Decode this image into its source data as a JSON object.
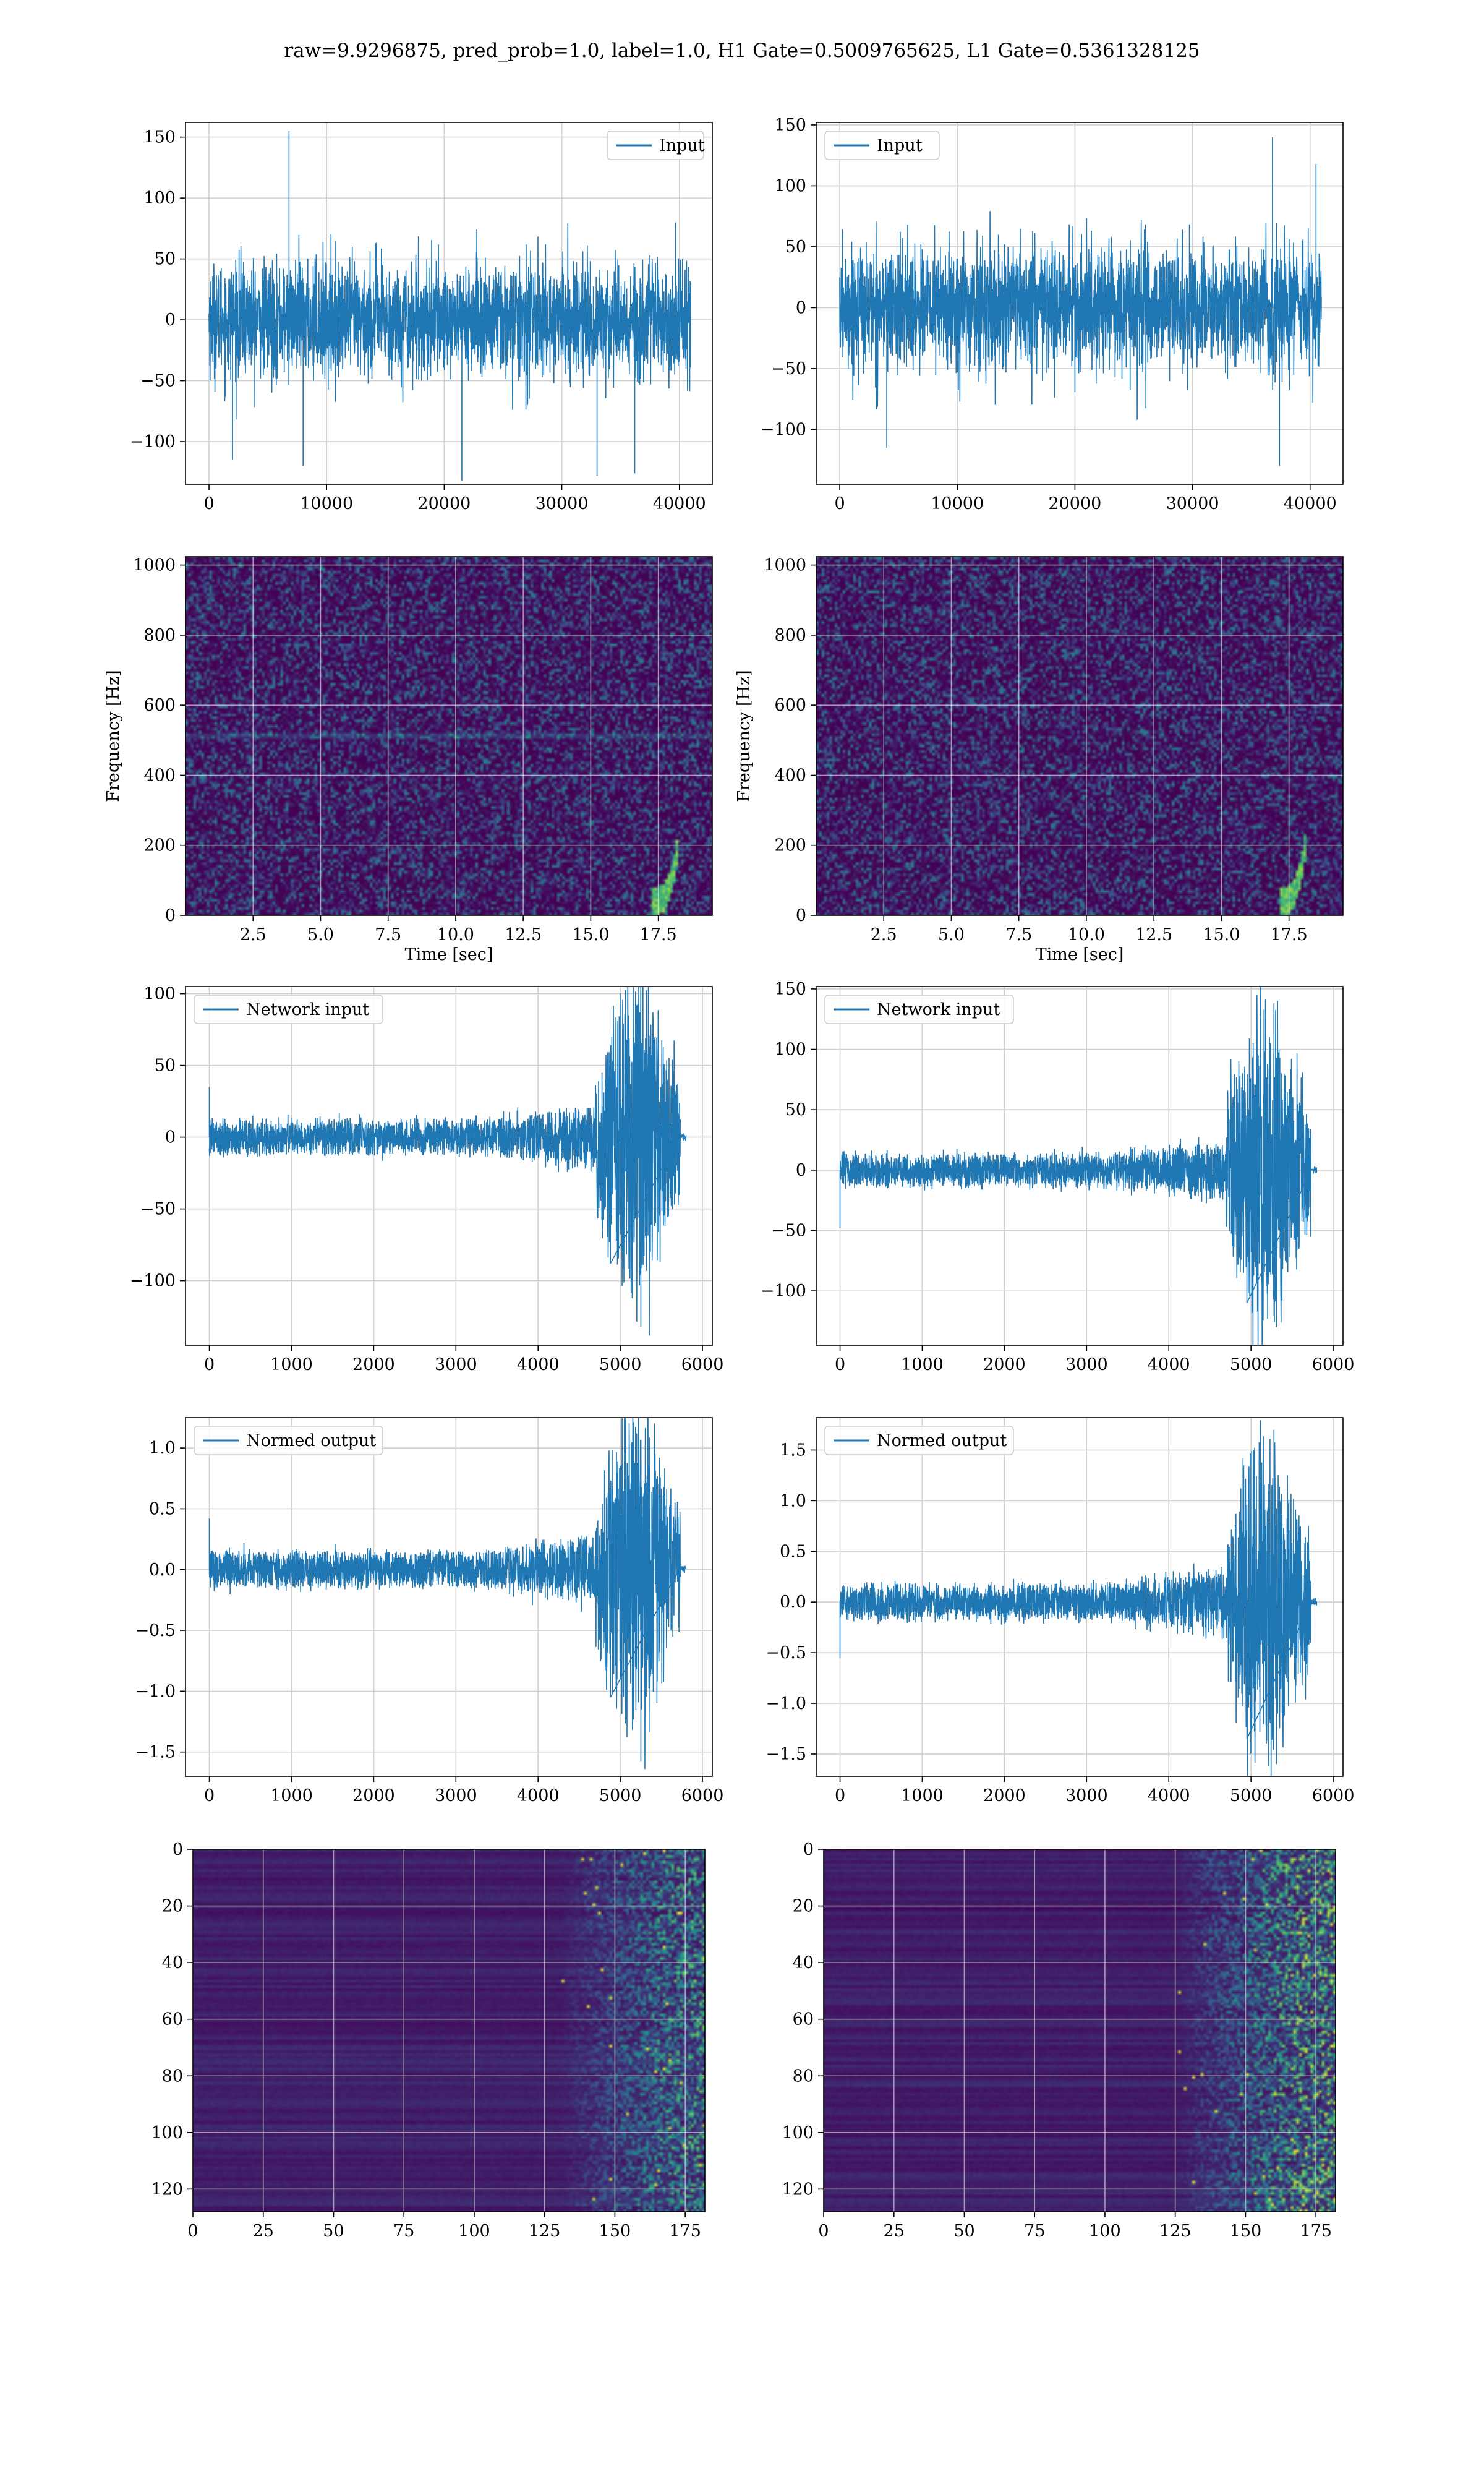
{
  "figure": {
    "title": "raw=9.9296875, pred_prob=1.0, label=1.0, H1 Gate=0.5009765625, L1 Gate=0.5361328125",
    "line_color": "#1f77b4"
  },
  "chart_data": [
    {
      "id": "input-h1",
      "type": "line",
      "legend": "Input",
      "legend_loc": "upper right",
      "xlim": [
        -2000,
        42800
      ],
      "ylim": [
        -135,
        162
      ],
      "grid": true,
      "xticks": [
        0,
        10000,
        20000,
        30000,
        40000
      ],
      "xtick_labels": [
        "0",
        "10000",
        "20000",
        "30000",
        "40000"
      ],
      "yticks": [
        -100,
        -50,
        0,
        50,
        100,
        150
      ],
      "ytick_labels": [
        "−100",
        "−50",
        "0",
        "50",
        "100",
        "150"
      ],
      "series": {
        "x_start": 0,
        "x_end": 40960,
        "std": 26,
        "env_max": 80,
        "env_min": -82,
        "spikes": [
          [
            6800,
            155
          ],
          [
            2000,
            -115
          ],
          [
            21500,
            -132
          ],
          [
            33000,
            -128
          ],
          [
            36200,
            -126
          ],
          [
            8000,
            -120
          ]
        ]
      }
    },
    {
      "id": "input-l1",
      "type": "line",
      "legend": "Input",
      "legend_loc": "upper left",
      "xlim": [
        -2000,
        42800
      ],
      "ylim": [
        -145,
        152
      ],
      "grid": true,
      "xticks": [
        0,
        10000,
        20000,
        30000,
        40000
      ],
      "xtick_labels": [
        "0",
        "10000",
        "20000",
        "30000",
        "40000"
      ],
      "yticks": [
        -100,
        -50,
        0,
        50,
        100,
        150
      ],
      "ytick_labels": [
        "−100",
        "−50",
        "0",
        "50",
        "100",
        "150"
      ],
      "series": {
        "x_start": 0,
        "x_end": 40960,
        "std": 28,
        "env_max": 92,
        "env_min": -92,
        "spikes": [
          [
            36800,
            140
          ],
          [
            37400,
            -130
          ],
          [
            4000,
            -115
          ],
          [
            40500,
            118
          ]
        ]
      }
    },
    {
      "id": "spec-h1",
      "type": "heatmap",
      "grid": true,
      "colormap": "viridis",
      "xlabel": "Time [sec]",
      "ylabel": "Frequency [Hz]",
      "xlim": [
        0,
        19.5
      ],
      "ylim": [
        0,
        1024
      ],
      "xticks": [
        2.5,
        5,
        7.5,
        10,
        12.5,
        15,
        17.5
      ],
      "xtick_labels": [
        "2.5",
        "5.0",
        "7.5",
        "10.0",
        "12.5",
        "15.0",
        "17.5"
      ],
      "yticks": [
        0,
        200,
        400,
        600,
        800,
        1000
      ],
      "ytick_labels": [
        "0",
        "200",
        "400",
        "600",
        "800",
        "1000"
      ],
      "chirp": {
        "t_end": 18.2,
        "f_max": 180
      }
    },
    {
      "id": "spec-l1",
      "type": "heatmap",
      "grid": true,
      "colormap": "viridis",
      "xlabel": "Time [sec]",
      "ylabel": "Frequency [Hz]",
      "xlim": [
        0,
        19.5
      ],
      "ylim": [
        0,
        1024
      ],
      "xticks": [
        2.5,
        5,
        7.5,
        10,
        12.5,
        15,
        17.5
      ],
      "xtick_labels": [
        "2.5",
        "5.0",
        "7.5",
        "10.0",
        "12.5",
        "15.0",
        "17.5"
      ],
      "yticks": [
        0,
        200,
        400,
        600,
        800,
        1000
      ],
      "ytick_labels": [
        "0",
        "200",
        "400",
        "600",
        "800",
        "1000"
      ],
      "chirp": {
        "t_end": 18.1,
        "f_max": 200
      }
    },
    {
      "id": "net-h1",
      "type": "line",
      "legend": "Network input",
      "legend_loc": "upper left",
      "xlim": [
        -290,
        6120
      ],
      "ylim": [
        -145,
        105
      ],
      "grid": true,
      "xticks": [
        0,
        1000,
        2000,
        3000,
        4000,
        5000,
        6000
      ],
      "xtick_labels": [
        "0",
        "1000",
        "2000",
        "3000",
        "4000",
        "5000",
        "6000"
      ],
      "yticks": [
        -100,
        -50,
        0,
        50,
        100
      ],
      "ytick_labels": [
        "−100",
        "−50",
        "0",
        "50",
        "100"
      ],
      "series": {
        "x_start": 0,
        "x_end": 5730,
        "tail_end": 5800,
        "base": 9,
        "grow_start": 3300,
        "burst_start": 4700,
        "burst_peak": 5150,
        "burst_amp": 65,
        "spikes": [
          [
            0,
            35
          ],
          [
            5250,
            -132
          ],
          [
            5200,
            92
          ],
          [
            4880,
            -88
          ]
        ]
      }
    },
    {
      "id": "net-l1",
      "type": "line",
      "legend": "Network input",
      "legend_loc": "upper left",
      "xlim": [
        -290,
        6120
      ],
      "ylim": [
        -145,
        152
      ],
      "grid": true,
      "xticks": [
        0,
        1000,
        2000,
        3000,
        4000,
        5000,
        6000
      ],
      "xtick_labels": [
        "0",
        "1000",
        "2000",
        "3000",
        "4000",
        "5000",
        "6000"
      ],
      "yticks": [
        -100,
        -50,
        0,
        50,
        100,
        150
      ],
      "ytick_labels": [
        "−100",
        "−50",
        "0",
        "50",
        "100",
        "150"
      ],
      "series": {
        "x_start": 0,
        "x_end": 5730,
        "tail_end": 5800,
        "base": 10,
        "grow_start": 3300,
        "burst_start": 4700,
        "burst_peak": 5150,
        "burst_amp": 75,
        "spikes": [
          [
            0,
            -48
          ],
          [
            5310,
            -130
          ],
          [
            5280,
            138
          ],
          [
            4950,
            -110
          ]
        ]
      }
    },
    {
      "id": "norm-h1",
      "type": "line",
      "legend": "Normed output",
      "legend_loc": "upper left",
      "xlim": [
        -290,
        6120
      ],
      "ylim": [
        -1.7,
        1.25
      ],
      "grid": true,
      "xticks": [
        0,
        1000,
        2000,
        3000,
        4000,
        5000,
        6000
      ],
      "xtick_labels": [
        "0",
        "1000",
        "2000",
        "3000",
        "4000",
        "5000",
        "6000"
      ],
      "yticks": [
        -1.5,
        -1.0,
        -0.5,
        0.0,
        0.5,
        1.0
      ],
      "ytick_labels": [
        "−1.5",
        "−1.0",
        "−0.5",
        "0.0",
        "0.5",
        "1.0"
      ],
      "series": {
        "x_start": 0,
        "x_end": 5730,
        "tail_end": 5800,
        "base": 0.11,
        "grow_start": 3300,
        "burst_start": 4700,
        "burst_peak": 5150,
        "burst_amp": 0.78,
        "spikes": [
          [
            0,
            0.42
          ],
          [
            5250,
            -1.58
          ],
          [
            5200,
            1.12
          ],
          [
            4880,
            -1.05
          ]
        ]
      }
    },
    {
      "id": "norm-l1",
      "type": "line",
      "legend": "Normed output",
      "legend_loc": "upper left",
      "xlim": [
        -290,
        6120
      ],
      "ylim": [
        -1.72,
        1.82
      ],
      "grid": true,
      "xticks": [
        0,
        1000,
        2000,
        3000,
        4000,
        5000,
        6000
      ],
      "xtick_labels": [
        "0",
        "1000",
        "2000",
        "3000",
        "4000",
        "5000",
        "6000"
      ],
      "yticks": [
        -1.5,
        -1.0,
        -0.5,
        0.0,
        0.5,
        1.0,
        1.5
      ],
      "ytick_labels": [
        "−1.5",
        "−1.0",
        "−0.5",
        "0.0",
        "0.5",
        "1.0",
        "1.5"
      ],
      "series": {
        "x_start": 0,
        "x_end": 5730,
        "tail_end": 5800,
        "base": 0.13,
        "grow_start": 3300,
        "burst_start": 4700,
        "burst_peak": 5150,
        "burst_amp": 0.9,
        "spikes": [
          [
            0,
            -0.55
          ],
          [
            5310,
            -1.6
          ],
          [
            5280,
            1.7
          ],
          [
            4950,
            -1.35
          ]
        ]
      }
    },
    {
      "id": "feat-h1",
      "type": "heatmap",
      "grid": true,
      "colormap": "viridis",
      "xlim": [
        0,
        182
      ],
      "ylim": [
        128,
        0
      ],
      "xticks": [
        0,
        25,
        50,
        75,
        100,
        125,
        150,
        175
      ],
      "xtick_labels": [
        "0",
        "25",
        "50",
        "75",
        "100",
        "125",
        "150",
        "175"
      ],
      "yticks": [
        0,
        20,
        40,
        60,
        80,
        100,
        120
      ],
      "ytick_labels": [
        "0",
        "20",
        "40",
        "60",
        "80",
        "100",
        "120"
      ],
      "activation": {
        "onset": 130,
        "strength": 0.7
      }
    },
    {
      "id": "feat-l1",
      "type": "heatmap",
      "grid": true,
      "colormap": "viridis",
      "xlim": [
        0,
        182
      ],
      "ylim": [
        128,
        0
      ],
      "xticks": [
        0,
        25,
        50,
        75,
        100,
        125,
        150,
        175
      ],
      "xtick_labels": [
        "0",
        "25",
        "50",
        "75",
        "100",
        "125",
        "150",
        "175"
      ],
      "yticks": [
        0,
        20,
        40,
        60,
        80,
        100,
        120
      ],
      "ytick_labels": [
        "0",
        "20",
        "40",
        "60",
        "80",
        "100",
        "120"
      ],
      "activation": {
        "onset": 125,
        "strength": 0.85
      }
    }
  ]
}
